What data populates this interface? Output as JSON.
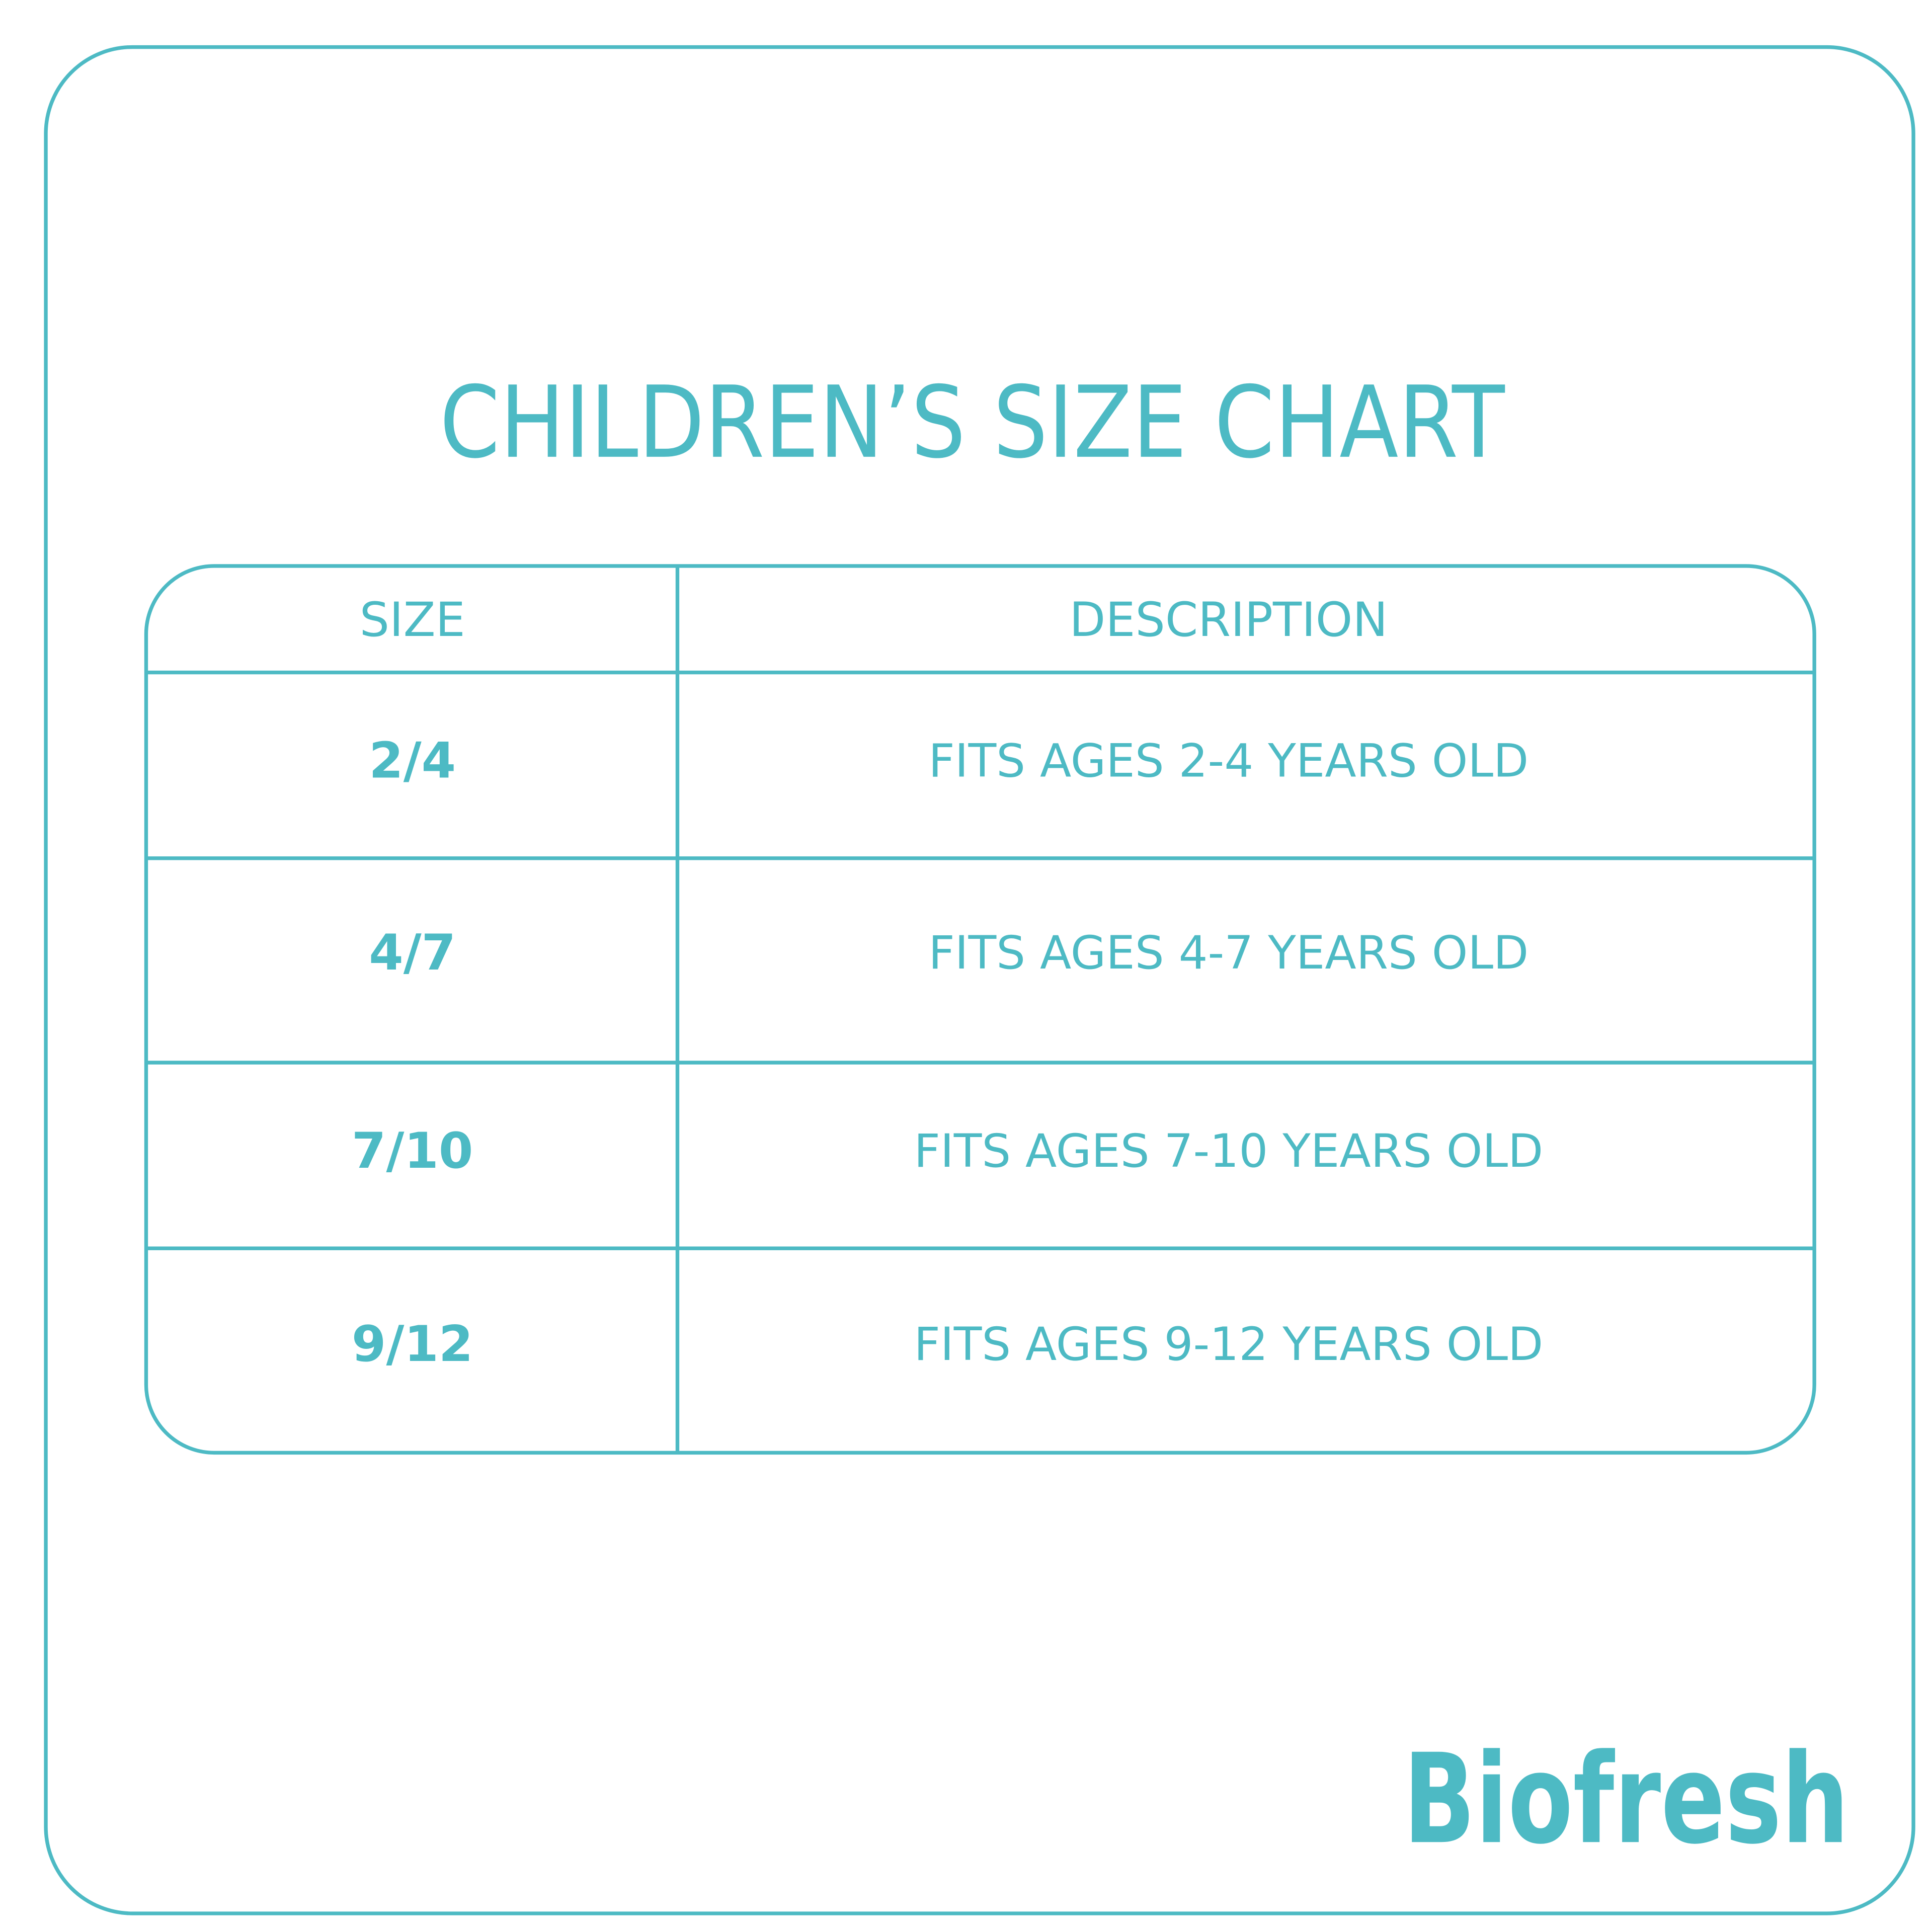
{
  "header": {
    "title": "CHILDREN’S SIZE CHART"
  },
  "table": {
    "columns": [
      "SIZE",
      "DESCRIPTION"
    ],
    "rows": [
      [
        "2/4",
        "FITS AGES 2-4 YEARS OLD"
      ],
      [
        "4/7",
        "FITS AGES 4-7 YEARS OLD"
      ],
      [
        "7/10",
        "FITS AGES 7-10 YEARS OLD"
      ],
      [
        "9/12",
        "FITS AGES 9-12 YEARS OLD"
      ]
    ]
  },
  "brand": {
    "logo": "Biofresh"
  }
}
